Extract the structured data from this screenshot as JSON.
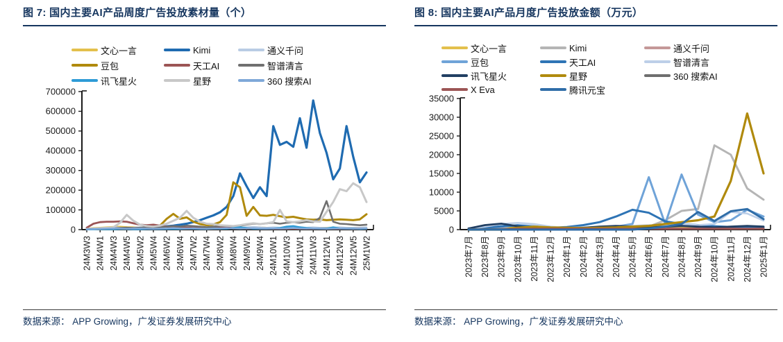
{
  "page": {
    "background": "#ffffff",
    "accent": "#15355E"
  },
  "chart_data": [
    {
      "type": "line",
      "title": "图 7:  国内主要AI产品周度广告投放素材量（个）",
      "source": "数据来源：  APP Growing，广发证券发展研究中心",
      "ylabel": "",
      "xlabel": "",
      "ylim": [
        0,
        700000
      ],
      "ytick_step": 100000,
      "grid": false,
      "legend_position": "top",
      "label_every": 2,
      "x_labels": [
        "24M3W3",
        "24M4W1",
        "24M4W3",
        "24M4W5",
        "24M5W2",
        "24M5W4",
        "24M6W2",
        "24M6W4",
        "24M7W2",
        "24M7W4",
        "24M8W2",
        "24M8W4",
        "24M9W2",
        "24M9W4",
        "24M10W1",
        "24M10W3",
        "24M11W1",
        "24M11W3",
        "24M12W1",
        "24M12W3",
        "24M12W5",
        "25M1W2"
      ],
      "series": [
        {
          "name": "文心一言",
          "color": "#E3C04C",
          "w": 2.4,
          "values": [
            5000,
            8000,
            10000,
            12000,
            14000,
            15000,
            13000,
            12000,
            10000,
            9000,
            8000,
            9000,
            10000,
            12000,
            10000,
            9000,
            8000,
            9000,
            10000,
            12000,
            14000,
            15000,
            13000,
            12000,
            10000,
            11000,
            12000,
            10000,
            9000,
            10000,
            11000,
            12000,
            10000,
            9000,
            8000,
            9000,
            10000,
            11000,
            10000,
            9000,
            8000,
            9000,
            10000
          ]
        },
        {
          "name": "Kimi",
          "color": "#1F6BB1",
          "w": 3.2,
          "values": [
            3000,
            4000,
            5000,
            5000,
            6000,
            6000,
            7000,
            8000,
            9000,
            10000,
            12000,
            14000,
            17000,
            20000,
            25000,
            30000,
            38000,
            48000,
            60000,
            72000,
            88000,
            115000,
            170000,
            285000,
            220000,
            160000,
            215000,
            170000,
            525000,
            430000,
            445000,
            420000,
            565000,
            415000,
            655000,
            490000,
            390000,
            255000,
            310000,
            525000,
            370000,
            240000,
            290000
          ]
        },
        {
          "name": "通义千问",
          "color": "#B9CCE4",
          "w": 2.4,
          "values": [
            4000,
            6000,
            8000,
            10000,
            12000,
            10000,
            9000,
            10000,
            12000,
            10000,
            9000,
            10000,
            12000,
            14000,
            12000,
            10000,
            12000,
            10000,
            9000,
            10000,
            12000,
            14000,
            12000,
            10000,
            12000,
            14000,
            12000,
            10000,
            12000,
            10000,
            12000,
            14000,
            12000,
            10000,
            12000,
            10000,
            9000,
            10000,
            12000,
            10000,
            9000,
            10000,
            12000
          ]
        },
        {
          "name": "豆包",
          "color": "#B08A0D",
          "w": 3,
          "values": [
            2000,
            2000,
            3000,
            3000,
            3000,
            4000,
            4000,
            5000,
            5000,
            6000,
            8000,
            20000,
            55000,
            80000,
            55000,
            62000,
            40000,
            28000,
            22000,
            26000,
            38000,
            75000,
            240000,
            215000,
            70000,
            115000,
            72000,
            70000,
            75000,
            68000,
            62000,
            65000,
            58000,
            52000,
            50000,
            52000,
            48000,
            50000,
            52000,
            50000,
            48000,
            52000,
            78000
          ]
        },
        {
          "name": "天工AI",
          "color": "#9C5555",
          "w": 2.8,
          "values": [
            10000,
            30000,
            38000,
            40000,
            40000,
            42000,
            40000,
            32000,
            25000,
            22000,
            25000,
            20000,
            15000,
            12000,
            10000,
            10000,
            8000,
            8000,
            8000,
            8000,
            10000,
            10000,
            8000,
            8000,
            6000,
            6000,
            5000,
            5000,
            5000,
            5000,
            5000,
            5000,
            5000,
            5000,
            5000,
            5000,
            5000,
            5000,
            5000,
            5000,
            5000,
            5000,
            5000
          ]
        },
        {
          "name": "智谱清言",
          "color": "#707070",
          "w": 2.6,
          "values": [
            2000,
            3000,
            4000,
            5000,
            6000,
            8000,
            10000,
            8000,
            10000,
            12000,
            10000,
            12000,
            15000,
            18000,
            15000,
            20000,
            18000,
            15000,
            12000,
            15000,
            18000,
            20000,
            18000,
            20000,
            25000,
            30000,
            28000,
            32000,
            35000,
            30000,
            35000,
            38000,
            35000,
            40000,
            38000,
            60000,
            145000,
            40000,
            30000,
            28000,
            25000,
            22000,
            25000
          ]
        },
        {
          "name": "讯飞星火",
          "color": "#2E9BD6",
          "w": 2.6,
          "values": [
            1000,
            1000,
            2000,
            2000,
            2000,
            3000,
            3000,
            2000,
            2000,
            3000,
            3000,
            3000,
            4000,
            4000,
            4000,
            5000,
            5000,
            4000,
            4000,
            5000,
            5000,
            5000,
            8000,
            12000,
            8000,
            5000,
            5000,
            5000,
            6000,
            8000,
            15000,
            18000,
            12000,
            8000,
            6000,
            5000,
            5000,
            12000,
            6000,
            5000,
            5000,
            4000,
            5000
          ]
        },
        {
          "name": "星野",
          "color": "#C8C8C8",
          "w": 3,
          "values": [
            3000,
            4000,
            5000,
            8000,
            12000,
            35000,
            75000,
            45000,
            25000,
            18000,
            15000,
            20000,
            30000,
            45000,
            60000,
            95000,
            60000,
            40000,
            30000,
            28000,
            22000,
            20000,
            18000,
            22000,
            28000,
            32000,
            28000,
            32000,
            38000,
            100000,
            42000,
            38000,
            42000,
            48000,
            42000,
            40000,
            90000,
            140000,
            205000,
            195000,
            235000,
            215000,
            140000
          ]
        },
        {
          "name": "360 搜索AI",
          "color": "#7FA8D8",
          "w": 2.4,
          "values": [
            2000,
            3000,
            4000,
            5000,
            6000,
            5000,
            4000,
            5000,
            6000,
            5000,
            4000,
            5000,
            6000,
            8000,
            6000,
            5000,
            6000,
            5000,
            4000,
            5000,
            6000,
            8000,
            6000,
            5000,
            6000,
            8000,
            6000,
            5000,
            6000,
            5000,
            6000,
            8000,
            6000,
            5000,
            6000,
            5000,
            4000,
            5000,
            6000,
            5000,
            4000,
            5000,
            6000
          ]
        }
      ]
    },
    {
      "type": "line",
      "title": "图 8:  国内主要AI产品月度广告投放金额（万元）",
      "source": "数据来源：  APP Growing，广发证券发展研究中心",
      "ylabel": "",
      "xlabel": "",
      "ylim": [
        0,
        35000
      ],
      "ytick_step": 5000,
      "grid": false,
      "legend_position": "top",
      "label_every": 1,
      "x_labels": [
        "2023年7月",
        "2023年8月",
        "2023年9月",
        "2023年10月",
        "2023年11月",
        "2023年12月",
        "2024年1月",
        "2024年2月",
        "2024年3月",
        "2024年4月",
        "2024年5月",
        "2024年6月",
        "2024年7月",
        "2024年8月",
        "2024年9月",
        "2024年10月",
        "2024年11月",
        "2024年12月",
        "2025年1月"
      ],
      "series": [
        {
          "name": "文心一言",
          "color": "#E3C04C",
          "w": 2.6,
          "values": [
            200,
            400,
            900,
            700,
            500,
            400,
            300,
            300,
            400,
            500,
            600,
            500,
            400,
            500,
            600,
            500,
            400,
            500,
            400
          ]
        },
        {
          "name": "Kimi",
          "color": "#B5B5B5",
          "w": 3,
          "values": [
            100,
            150,
            200,
            250,
            300,
            350,
            400,
            300,
            350,
            400,
            500,
            800,
            2500,
            5000,
            5500,
            22500,
            20000,
            11000,
            8000
          ]
        },
        {
          "name": "通义千问",
          "color": "#C49898",
          "w": 2.6,
          "values": [
            200,
            250,
            300,
            300,
            300,
            300,
            250,
            250,
            300,
            300,
            300,
            300,
            300,
            300,
            300,
            300,
            300,
            300,
            300
          ]
        },
        {
          "name": "豆包",
          "color": "#6FA3D8",
          "w": 3,
          "values": [
            200,
            300,
            800,
            1200,
            900,
            500,
            400,
            300,
            500,
            800,
            1500,
            14000,
            1500,
            14700,
            4000,
            2000,
            2500,
            5300,
            3500
          ]
        },
        {
          "name": "天工AI",
          "color": "#2E74B5",
          "w": 3,
          "values": [
            300,
            500,
            900,
            1100,
            700,
            500,
            700,
            1200,
            2000,
            3500,
            5300,
            4500,
            2200,
            1500,
            1200,
            900,
            700,
            600,
            500
          ]
        },
        {
          "name": "智谱清言",
          "color": "#BDCFE8",
          "w": 2.6,
          "values": [
            300,
            800,
            1500,
            1800,
            1500,
            800,
            500,
            600,
            700,
            800,
            1000,
            1200,
            900,
            1500,
            1200,
            1500,
            4700,
            4300,
            2400
          ]
        },
        {
          "name": "讯飞星火",
          "color": "#213F63",
          "w": 2.8,
          "values": [
            300,
            1200,
            1600,
            900,
            500,
            400,
            300,
            500,
            800,
            1000,
            800,
            600,
            800,
            1000,
            800,
            600,
            800,
            1000,
            800
          ]
        },
        {
          "name": "星野",
          "color": "#B08A0D",
          "w": 3.2,
          "values": [
            0,
            0,
            0,
            500,
            800,
            600,
            500,
            400,
            500,
            600,
            800,
            1000,
            1500,
            2000,
            2500,
            3500,
            13000,
            31000,
            15000
          ]
        },
        {
          "name": "360 搜索AI",
          "color": "#6E6E6E",
          "w": 2.4,
          "values": [
            100,
            150,
            200,
            250,
            200,
            200,
            150,
            150,
            200,
            200,
            250,
            250,
            200,
            250,
            300,
            250,
            200,
            250,
            200
          ]
        },
        {
          "name": "X Eva",
          "color": "#9C5555",
          "w": 2.8,
          "values": [
            0,
            0,
            0,
            250,
            250,
            250,
            250,
            250,
            250,
            250,
            250,
            250,
            250,
            250,
            250,
            250,
            250,
            250,
            250
          ]
        },
        {
          "name": "腾讯元宝",
          "color": "#2F6DA8",
          "w": 3,
          "values": [
            0,
            0,
            0,
            0,
            0,
            0,
            0,
            0,
            0,
            0,
            0,
            300,
            800,
            1500,
            4700,
            2300,
            4900,
            5500,
            2800
          ]
        }
      ]
    }
  ]
}
